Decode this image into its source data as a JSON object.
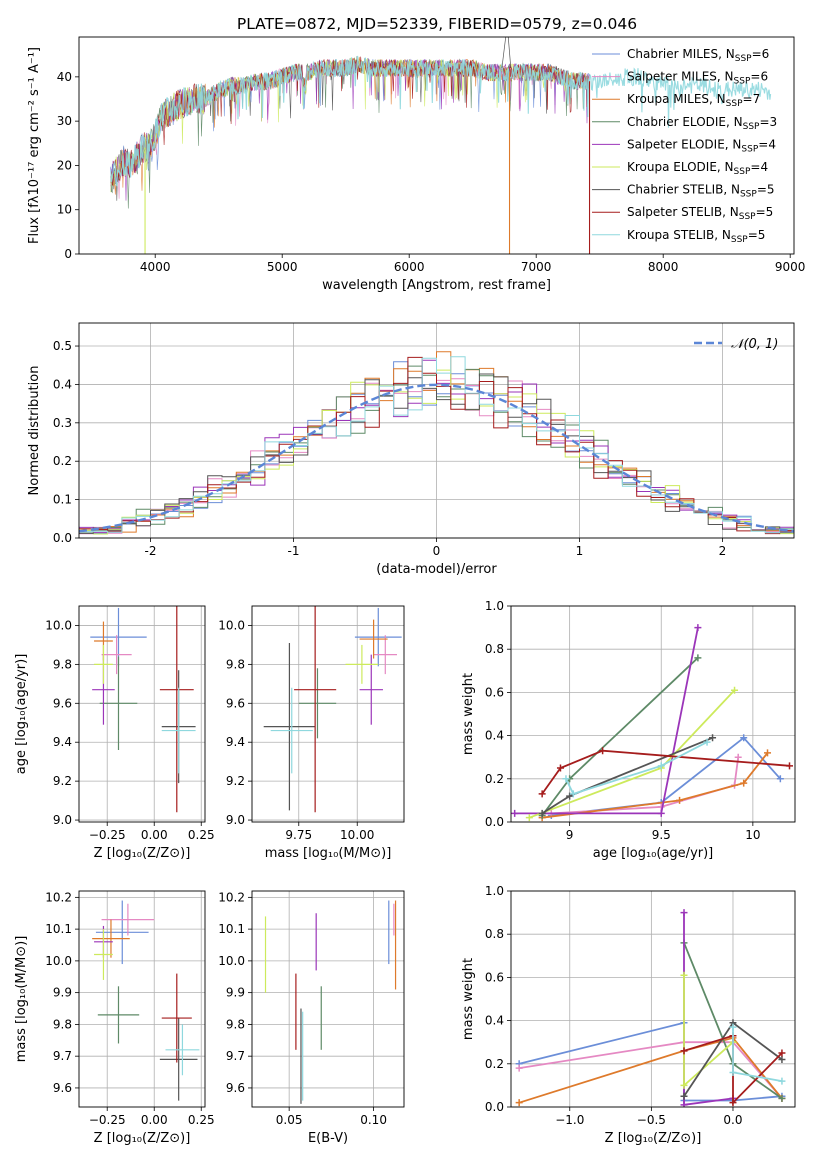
{
  "figure": {
    "title": "PLATE=0872, MJD=52339, FIBERID=0579, z=0.046"
  },
  "legend_entries": [
    {
      "label": "Chabrier MILES, N",
      "sub": "SSP",
      "suffix": "=6",
      "color": "#6b8ed8"
    },
    {
      "label": "Salpeter MILES, N",
      "sub": "SSP",
      "suffix": "=6",
      "color": "#e589c3"
    },
    {
      "label": "Kroupa MILES, N",
      "sub": "SSP",
      "suffix": "=7",
      "color": "#de7a2b"
    },
    {
      "label": "Chabrier ELODIE, N",
      "sub": "SSP",
      "suffix": "=3",
      "color": "#5e8a67"
    },
    {
      "label": "Salpeter ELODIE, N",
      "sub": "SSP",
      "suffix": "=4",
      "color": "#9b35b9"
    },
    {
      "label": "Kroupa ELODIE, N",
      "sub": "SSP",
      "suffix": "=4",
      "color": "#cdea5c"
    },
    {
      "label": "Chabrier STELIB, N",
      "sub": "SSP",
      "suffix": "=5",
      "color": "#555555"
    },
    {
      "label": "Salpeter STELIB, N",
      "sub": "SSP",
      "suffix": "=5",
      "color": "#a51c1c"
    },
    {
      "label": "Kroupa STELIB, N",
      "sub": "SSP",
      "suffix": "=5",
      "color": "#8fd8de"
    }
  ],
  "chart_data": [
    {
      "id": "spectrum",
      "type": "line",
      "xlabel": "wavelength [Angstrom, rest frame]",
      "ylabel": "Flux [fλ10⁻¹⁷ erg cm⁻² s⁻¹ A⁻¹]",
      "xlim": [
        3400,
        9030
      ],
      "ylim": [
        0,
        49
      ],
      "xticks": [
        4000,
        5000,
        6000,
        7000,
        8000,
        9000
      ],
      "yticks": [
        0,
        10,
        20,
        30,
        40
      ],
      "grid": false,
      "legend": "top-right",
      "continuum": {
        "x": [
          3650,
          3700,
          3750,
          3800,
          3850,
          3900,
          3950,
          4000,
          4050,
          4100,
          4200,
          4300,
          4400,
          4500,
          4600,
          4700,
          4800,
          4900,
          5000,
          5100,
          5200,
          5300,
          5400,
          5500,
          5600,
          5700,
          5800,
          5900,
          6000,
          6100,
          6200,
          6300,
          6400,
          6500,
          6600,
          6700,
          6800,
          6900,
          7000,
          7100,
          7200,
          7300,
          7400,
          7500,
          7600,
          7700,
          7800,
          7900,
          8000,
          8100,
          8200,
          8300,
          8400,
          8500,
          8600,
          8700,
          8800,
          8850
        ],
        "y": [
          17,
          19,
          21,
          20,
          22,
          24,
          24,
          27,
          31,
          32,
          34,
          35,
          35,
          37,
          38,
          38,
          39,
          39,
          40,
          41,
          41,
          42,
          42,
          42,
          43,
          42,
          42,
          42,
          42,
          42,
          42,
          42,
          42,
          42,
          41,
          41,
          41,
          41,
          41,
          41,
          40,
          39,
          39,
          39,
          39,
          40,
          40,
          39,
          38,
          38,
          38,
          38,
          37,
          37,
          37,
          37,
          37,
          36
        ]
      },
      "drops": [
        {
          "x": 3920,
          "to": 0
        },
        {
          "x": 6790,
          "to": 0
        },
        {
          "x": 7420,
          "to": 0
        }
      ],
      "halpha_peak": {
        "x": 6760,
        "y": 49
      }
    },
    {
      "id": "residuals",
      "type": "step",
      "xlabel": "(data-model)/error",
      "ylabel": "Normed distribution",
      "xlim": [
        -2.5,
        2.5
      ],
      "ylim": [
        0,
        0.56
      ],
      "xticks": [
        -2,
        -1,
        0,
        1,
        2
      ],
      "yticks": [
        0,
        0.1,
        0.2,
        0.3,
        0.4,
        0.5
      ],
      "grid": true,
      "bin_edges_start": -2.6,
      "bin_width": 0.1,
      "bins": 52,
      "reference_curve": {
        "name": "𝒩(0, 1)",
        "style": "dashed",
        "color": "#5b86d6"
      },
      "legend": "top-right"
    },
    {
      "id": "age-vs-Z",
      "type": "errorbar",
      "xlabel": "Z [log₁₀(Z/Z⊙)]",
      "ylabel": "age  [log₁₀(age/yr)]",
      "xlim": [
        -0.4,
        0.27
      ],
      "ylim": [
        8.99,
        10.1
      ],
      "xticks": [
        -0.25,
        0.0,
        0.25
      ],
      "xticklabels": [
        "−0.25",
        "0.00",
        "0.25"
      ],
      "yticks": [
        9.0,
        9.2,
        9.4,
        9.6,
        9.8,
        10.0
      ],
      "grid": true,
      "points": [
        {
          "series": 0,
          "x": -0.19,
          "xerr": 0.15,
          "y": 9.94,
          "yerr": 0.15
        },
        {
          "series": 1,
          "x": -0.2,
          "xerr": 0.08,
          "y": 9.85,
          "yerr": 0.1
        },
        {
          "series": 2,
          "x": -0.27,
          "xerr": 0.05,
          "y": 9.92,
          "yerr": 0.1
        },
        {
          "series": 3,
          "x": -0.19,
          "xerr": 0.1,
          "y": 9.6,
          "yerr": 0.24
        },
        {
          "series": 4,
          "x": -0.27,
          "xerr": 0.06,
          "y": 9.67,
          "yerr": 0.18
        },
        {
          "series": 5,
          "x": -0.27,
          "xerr": 0.05,
          "y": 9.8,
          "yerr": 0.1
        },
        {
          "series": 6,
          "x": 0.13,
          "xerr": 0.09,
          "y": 9.48,
          "yerr": 0.29
        },
        {
          "series": 7,
          "x": 0.12,
          "xerr": 0.09,
          "y": 9.67,
          "yerr": 0.63
        },
        {
          "series": 8,
          "x": 0.13,
          "xerr": 0.09,
          "y": 9.46,
          "yerr": 0.22
        }
      ]
    },
    {
      "id": "age-vs-mass",
      "type": "errorbar",
      "xlabel": "mass [log₁₀(M/M⊙)]",
      "ylabel": "",
      "xlim": [
        9.55,
        10.2
      ],
      "ylim": [
        8.99,
        10.1
      ],
      "xticks": [
        9.75,
        10.0
      ],
      "xticklabels": [
        "9.75",
        "10.00"
      ],
      "yticks": [
        9.0,
        9.2,
        9.4,
        9.6,
        9.8,
        10.0
      ],
      "grid": true,
      "points": [
        {
          "series": 0,
          "x": 10.09,
          "xerr": 0.1,
          "y": 9.94,
          "yerr": 0.15
        },
        {
          "series": 1,
          "x": 10.12,
          "xerr": 0.05,
          "y": 9.85,
          "yerr": 0.1
        },
        {
          "series": 2,
          "x": 10.07,
          "xerr": 0.06,
          "y": 9.93,
          "yerr": 0.1
        },
        {
          "series": 3,
          "x": 9.83,
          "xerr": 0.08,
          "y": 9.6,
          "yerr": 0.18
        },
        {
          "series": 4,
          "x": 10.06,
          "xerr": 0.05,
          "y": 9.67,
          "yerr": 0.18
        },
        {
          "series": 5,
          "x": 10.02,
          "xerr": 0.07,
          "y": 9.8,
          "yerr": 0.1
        },
        {
          "series": 6,
          "x": 9.71,
          "xerr": 0.11,
          "y": 9.48,
          "yerr": 0.43
        },
        {
          "series": 7,
          "x": 9.82,
          "xerr": 0.09,
          "y": 9.67,
          "yerr": 0.63
        },
        {
          "series": 8,
          "x": 9.72,
          "xerr": 0.09,
          "y": 9.46,
          "yerr": 0.22
        }
      ]
    },
    {
      "id": "weight-vs-age",
      "type": "line",
      "xlabel": "age  [log₁₀(age/yr)]",
      "ylabel": "mass weight",
      "xlim": [
        8.68,
        10.23
      ],
      "ylim": [
        0,
        1
      ],
      "xticks": [
        9.0,
        9.5,
        10.0
      ],
      "yticks": [
        0,
        0.2,
        0.4,
        0.6,
        0.8,
        1.0
      ],
      "grid": true,
      "series": [
        {
          "series": 0,
          "points": [
            [
              8.9,
              0.03
            ],
            [
              9.5,
              0.09
            ],
            [
              9.95,
              0.39
            ],
            [
              10.15,
              0.2
            ]
          ]
        },
        {
          "series": 1,
          "points": [
            [
              8.9,
              0.04
            ],
            [
              9.5,
              0.07
            ],
            [
              9.9,
              0.17
            ],
            [
              9.92,
              0.3
            ]
          ]
        },
        {
          "series": 2,
          "points": [
            [
              8.85,
              0.02
            ],
            [
              9.6,
              0.1
            ],
            [
              9.95,
              0.18
            ],
            [
              10.08,
              0.32
            ]
          ]
        },
        {
          "series": 3,
          "points": [
            [
              8.85,
              0.03
            ],
            [
              9.0,
              0.2
            ],
            [
              9.7,
              0.76
            ]
          ]
        },
        {
          "series": 4,
          "points": [
            [
              8.7,
              0.04
            ],
            [
              9.5,
              0.04
            ],
            [
              9.7,
              0.9
            ]
          ]
        },
        {
          "series": 5,
          "points": [
            [
              8.78,
              0.02
            ],
            [
              9.5,
              0.25
            ],
            [
              9.9,
              0.61
            ]
          ]
        },
        {
          "series": 6,
          "points": [
            [
              8.85,
              0.04
            ],
            [
              9.0,
              0.12
            ],
            [
              9.78,
              0.39
            ]
          ]
        },
        {
          "series": 7,
          "points": [
            [
              8.85,
              0.13
            ],
            [
              8.95,
              0.25
            ],
            [
              9.18,
              0.33
            ],
            [
              10.2,
              0.26
            ]
          ]
        },
        {
          "series": 8,
          "points": [
            [
              8.98,
              0.2
            ],
            [
              9.02,
              0.13
            ],
            [
              9.5,
              0.26
            ],
            [
              9.75,
              0.37
            ]
          ]
        }
      ]
    },
    {
      "id": "mass-vs-Z",
      "type": "errorbar",
      "xlabel": "Z [log₁₀(Z/Z⊙)]",
      "ylabel": "mass [log₁₀(M/M⊙)]",
      "xlim": [
        -0.4,
        0.27
      ],
      "ylim": [
        9.54,
        10.22
      ],
      "xticks": [
        -0.25,
        0.0,
        0.25
      ],
      "xticklabels": [
        "−0.25",
        "0.00",
        "0.25"
      ],
      "yticks": [
        9.6,
        9.7,
        9.8,
        9.9,
        10.0,
        10.1,
        10.2
      ],
      "grid": true,
      "points": [
        {
          "series": 0,
          "x": -0.17,
          "xerr": 0.14,
          "y": 10.09,
          "yerr": 0.1
        },
        {
          "series": 1,
          "x": -0.14,
          "xerr": 0.14,
          "y": 10.13,
          "yerr": 0.05
        },
        {
          "series": 2,
          "x": -0.23,
          "xerr": 0.1,
          "y": 10.07,
          "yerr": 0.06
        },
        {
          "series": 3,
          "x": -0.19,
          "xerr": 0.11,
          "y": 9.83,
          "yerr": 0.09
        },
        {
          "series": 4,
          "x": -0.27,
          "xerr": 0.05,
          "y": 10.06,
          "yerr": 0.05
        },
        {
          "series": 5,
          "x": -0.27,
          "xerr": 0.05,
          "y": 10.02,
          "yerr": 0.08
        },
        {
          "series": 6,
          "x": 0.13,
          "xerr": 0.1,
          "y": 9.69,
          "yerr": 0.13
        },
        {
          "series": 7,
          "x": 0.12,
          "xerr": 0.08,
          "y": 9.82,
          "yerr": 0.14
        },
        {
          "series": 8,
          "x": 0.15,
          "xerr": 0.09,
          "y": 9.72,
          "yerr": 0.08
        }
      ]
    },
    {
      "id": "mass-vs-EBV",
      "type": "errorbar",
      "xlabel": "E(B-V)",
      "ylabel": "",
      "xlim": [
        0.028,
        0.118
      ],
      "ylim": [
        9.54,
        10.22
      ],
      "xticks": [
        0.05,
        0.1
      ],
      "xticklabels": [
        "0.05",
        "0.10"
      ],
      "yticks": [
        9.6,
        9.7,
        9.8,
        9.9,
        10.0,
        10.1,
        10.2
      ],
      "grid": true,
      "points": [
        {
          "series": 0,
          "x": 0.109,
          "xerr": 0,
          "y": 10.09,
          "yerr": 0.1
        },
        {
          "series": 1,
          "x": 0.112,
          "xerr": 0,
          "y": 10.13,
          "yerr": 0.05
        },
        {
          "series": 2,
          "x": 0.113,
          "xerr": 0,
          "y": 10.05,
          "yerr": 0.14
        },
        {
          "series": 3,
          "x": 0.069,
          "xerr": 0,
          "y": 9.82,
          "yerr": 0.1
        },
        {
          "series": 4,
          "x": 0.066,
          "xerr": 0,
          "y": 10.06,
          "yerr": 0.09
        },
        {
          "series": 5,
          "x": 0.036,
          "xerr": 0,
          "y": 10.02,
          "yerr": 0.12
        },
        {
          "series": 6,
          "x": 0.057,
          "xerr": 0,
          "y": 9.7,
          "yerr": 0.15
        },
        {
          "series": 7,
          "x": 0.054,
          "xerr": 0,
          "y": 9.84,
          "yerr": 0.12
        },
        {
          "series": 8,
          "x": 0.058,
          "xerr": 0,
          "y": 9.7,
          "yerr": 0.14
        }
      ]
    },
    {
      "id": "weight-vs-Z",
      "type": "line",
      "xlabel": "Z [log₁₀(Z/Z⊙)]",
      "ylabel": "mass weight",
      "xlim": [
        -1.36,
        0.38
      ],
      "ylim": [
        0,
        1
      ],
      "xticks": [
        -1.0,
        -0.5,
        0.0
      ],
      "xticklabels": [
        "−1.0",
        "−0.5",
        "0.0"
      ],
      "yticks": [
        0,
        0.2,
        0.4,
        0.6,
        0.8,
        1.0
      ],
      "grid": true,
      "series": [
        {
          "series": 0,
          "points": [
            [
              -1.31,
              0.2
            ],
            [
              -0.3,
              0.39
            ],
            [
              -0.3,
              0.03
            ],
            [
              0.0,
              0.03
            ],
            [
              0.3,
              0.05
            ]
          ]
        },
        {
          "series": 1,
          "points": [
            [
              -1.31,
              0.18
            ],
            [
              -0.3,
              0.3
            ],
            [
              0.0,
              0.3
            ],
            [
              0.3,
              0.04
            ]
          ]
        },
        {
          "series": 2,
          "points": [
            [
              -1.31,
              0.02
            ],
            [
              -0.3,
              0.26
            ],
            [
              0.0,
              0.32
            ],
            [
              0.3,
              0.04
            ]
          ]
        },
        {
          "series": 3,
          "points": [
            [
              -0.3,
              0.76
            ],
            [
              0.0,
              0.2
            ],
            [
              0.3,
              0.04
            ]
          ]
        },
        {
          "series": 4,
          "points": [
            [
              -0.3,
              0.9
            ],
            [
              -0.3,
              0.01
            ],
            [
              0.0,
              0.04
            ]
          ]
        },
        {
          "series": 5,
          "points": [
            [
              -0.3,
              0.61
            ],
            [
              -0.3,
              0.1
            ],
            [
              0.0,
              0.3
            ]
          ]
        },
        {
          "series": 6,
          "points": [
            [
              -0.3,
              0.05
            ],
            [
              0.0,
              0.39
            ],
            [
              0.3,
              0.22
            ]
          ]
        },
        {
          "series": 7,
          "points": [
            [
              -0.3,
              0.26
            ],
            [
              0.0,
              0.33
            ],
            [
              0.0,
              0.02
            ],
            [
              0.3,
              0.25
            ]
          ]
        },
        {
          "series": 8,
          "points": [
            [
              0.0,
              0.37
            ],
            [
              0.0,
              0.16
            ],
            [
              0.3,
              0.12
            ]
          ]
        }
      ]
    }
  ]
}
